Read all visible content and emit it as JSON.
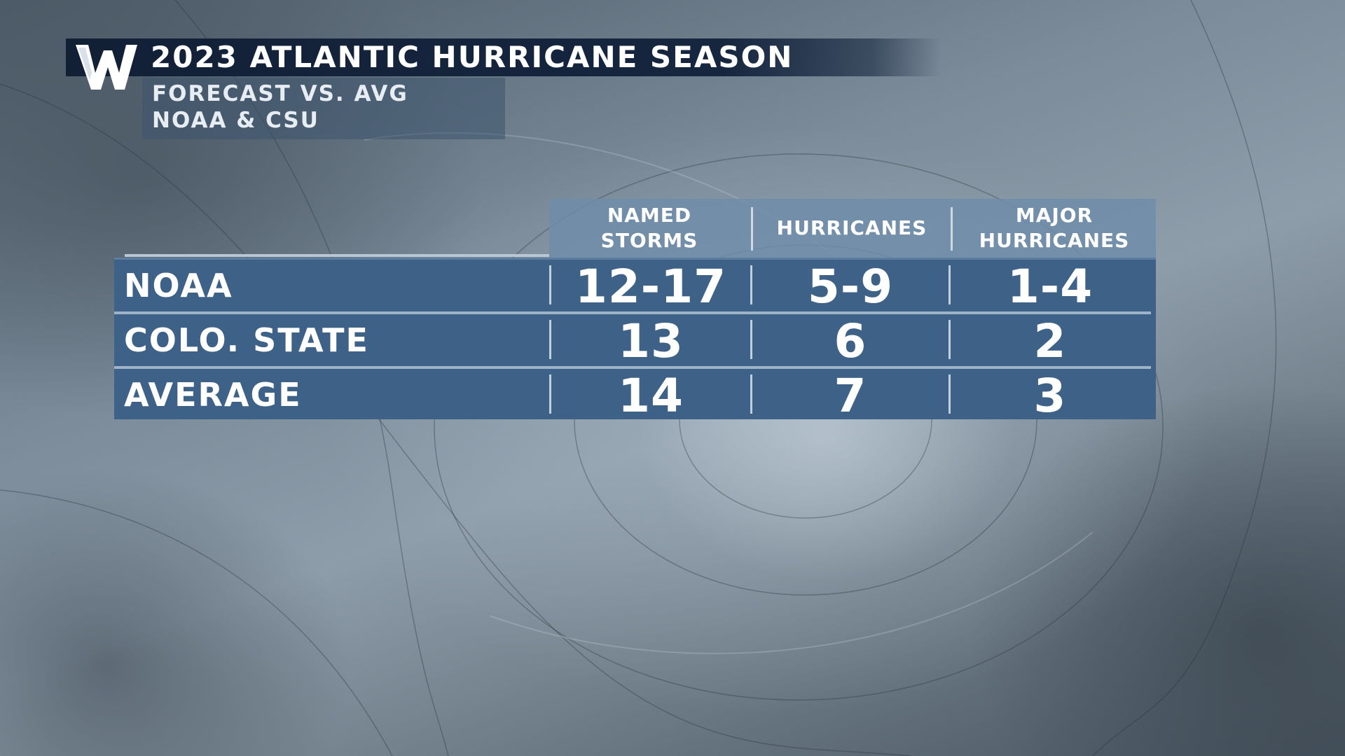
{
  "header": {
    "brand_logo": "W",
    "title": "2023 ATLANTIC HURRICANE SEASON",
    "subtitle_line1": "FORECAST VS. AVG",
    "subtitle_line2": "NOAA & CSU"
  },
  "table": {
    "columns": [
      {
        "line1": "NAMED",
        "line2": "STORMS"
      },
      {
        "line1": "HURRICANES",
        "line2": ""
      },
      {
        "line1": "MAJOR",
        "line2": "HURRICANES"
      }
    ],
    "rows": [
      {
        "label": "NOAA",
        "values": [
          "12-17",
          "5-9",
          "1-4"
        ]
      },
      {
        "label": "COLO. STATE",
        "values": [
          "13",
          "6",
          "2"
        ]
      },
      {
        "label": "AVERAGE",
        "values": [
          "14",
          "7",
          "3"
        ]
      }
    ]
  },
  "colors": {
    "title_bar": "#16263f",
    "table_header": "#6e8caa",
    "table_body": "#3e6287",
    "text": "#ffffff"
  }
}
